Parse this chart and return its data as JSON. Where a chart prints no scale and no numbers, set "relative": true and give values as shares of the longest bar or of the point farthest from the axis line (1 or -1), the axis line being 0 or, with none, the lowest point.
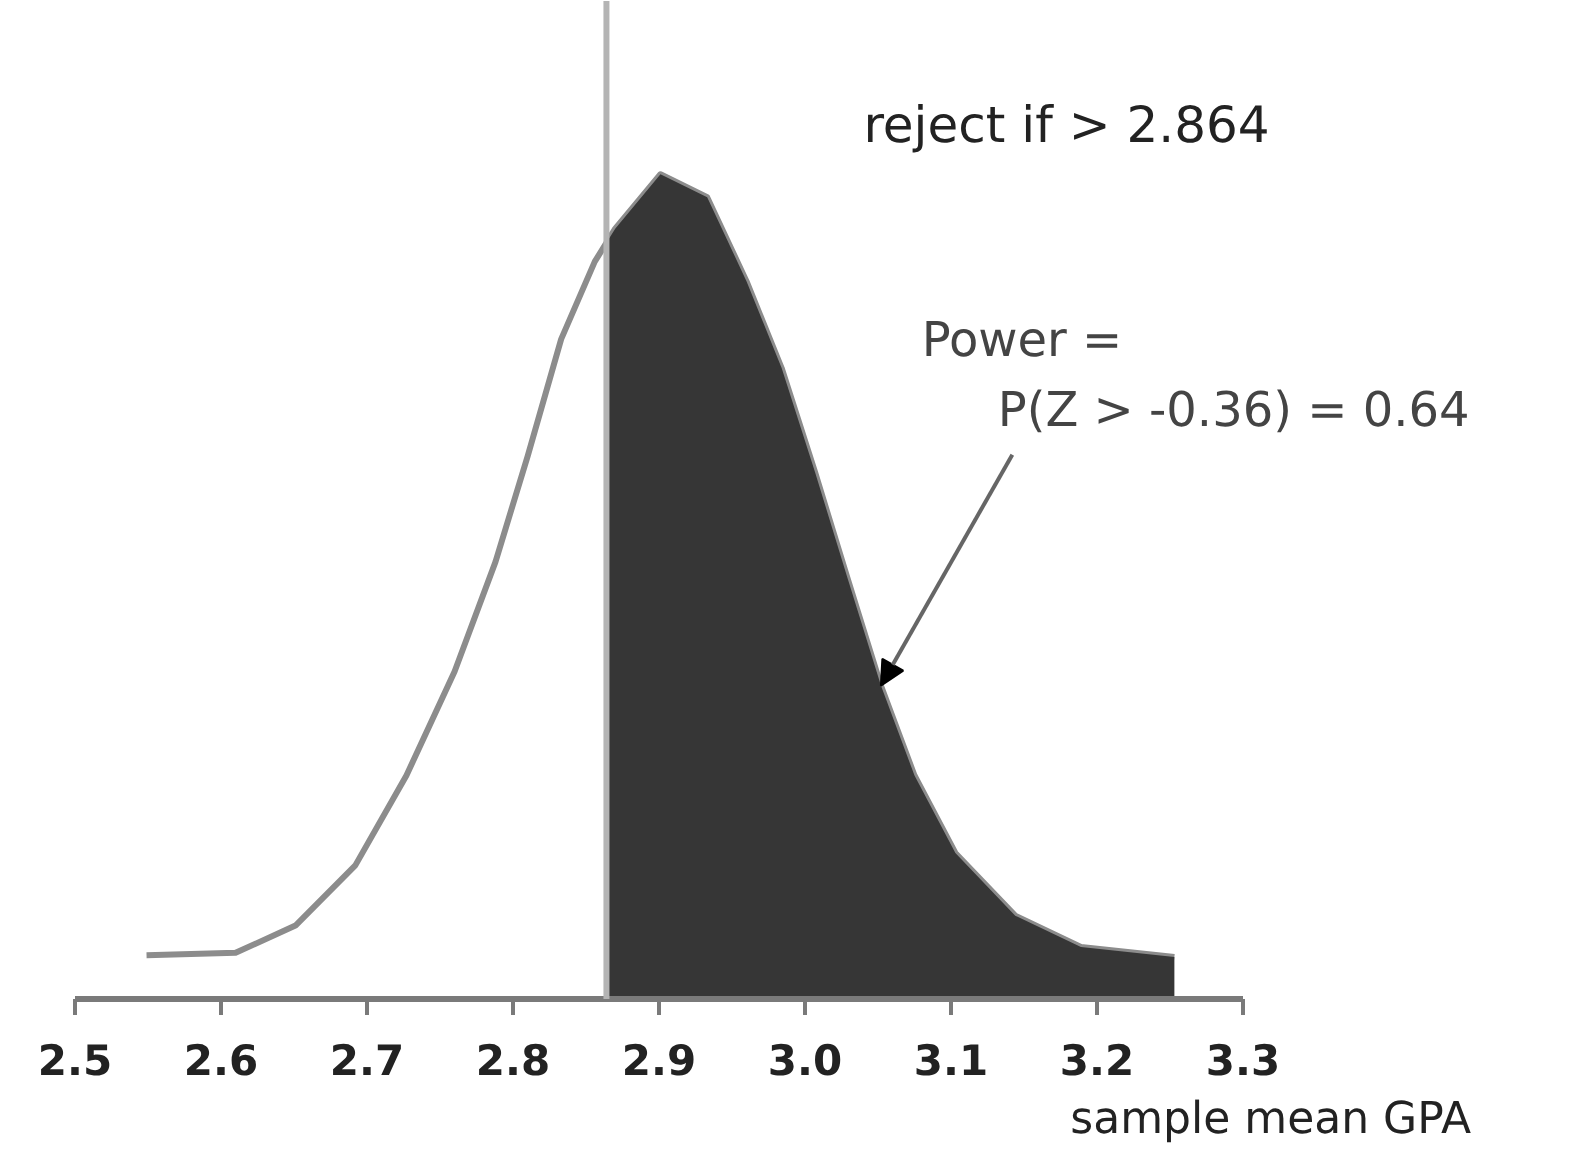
{
  "chart_data": {
    "type": "line",
    "relative": true,
    "xlabel": "sample mean GPA",
    "xlim": [
      2.5,
      3.3
    ],
    "xticks": [
      2.5,
      2.6,
      2.7,
      2.8,
      2.9,
      {
        "value": 3,
        "label": "3.0"
      },
      3.1,
      3.2,
      3.3
    ],
    "tick_labels": "x",
    "grid": false,
    "series": [
      {
        "color": "#8c8c8c",
        "x": [
          2.549,
          2.61,
          2.651,
          2.692,
          2.727,
          2.76,
          2.788,
          2.81,
          2.833,
          2.856,
          2.87,
          2.901,
          2.933,
          2.96,
          2.984,
          3.007,
          3.029,
          3.052,
          3.075,
          3.103,
          3.144,
          3.189,
          3.253
        ],
        "values": [
          0.053,
          0.056,
          0.089,
          0.162,
          0.271,
          0.397,
          0.53,
          0.658,
          0.8,
          0.894,
          0.934,
          1.0,
          0.972,
          0.87,
          0.765,
          0.638,
          0.511,
          0.38,
          0.271,
          0.177,
          0.101,
          0.063,
          0.051
        ]
      },
      {
        "type": "area",
        "color": "#363636",
        "x": [
          2.864,
          2.87,
          2.901,
          2.933,
          2.96,
          2.984,
          3.007,
          3.029,
          3.052,
          3.075,
          3.103,
          3.144,
          3.189,
          3.253
        ],
        "values": [
          0.917,
          0.934,
          1.0,
          0.972,
          0.87,
          0.765,
          0.638,
          0.511,
          0.38,
          0.271,
          0.177,
          0.101,
          0.063,
          0.051
        ]
      }
    ],
    "ref_lines": [
      {
        "axis": "x",
        "value": 2.864,
        "color": "#b4b4b4"
      }
    ],
    "annotations": [
      "reject if > 2.864",
      {
        "text": "Power =\nP(Z > -0.36) = 0.64",
        "x": 3.052,
        "y": 0.38
      }
    ]
  }
}
